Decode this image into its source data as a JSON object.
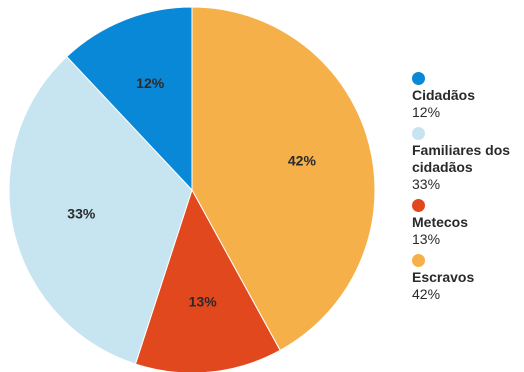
{
  "chart_data": {
    "type": "pie",
    "title": "",
    "start": "top, clockwise",
    "slices": [
      {
        "name": "Escravos",
        "value": 42,
        "label": "42%",
        "legend_value": "42%",
        "color": "#f5b04a"
      },
      {
        "name": "Metecos",
        "value": 13,
        "label": "13%",
        "legend_value": "13%",
        "color": "#e2481e"
      },
      {
        "name": "Familiares dos cidadãos",
        "value": 33,
        "label": "33%",
        "legend_value": "33%",
        "color": "#c7e4f1"
      },
      {
        "name": "Cidadãos",
        "value": 12,
        "label": "12%",
        "legend_value": "12%",
        "color": "#0a88d8"
      }
    ],
    "legend_order": [
      "Cidadãos",
      "Familiares dos cidadãos",
      "Metecos",
      "Escravos"
    ]
  }
}
